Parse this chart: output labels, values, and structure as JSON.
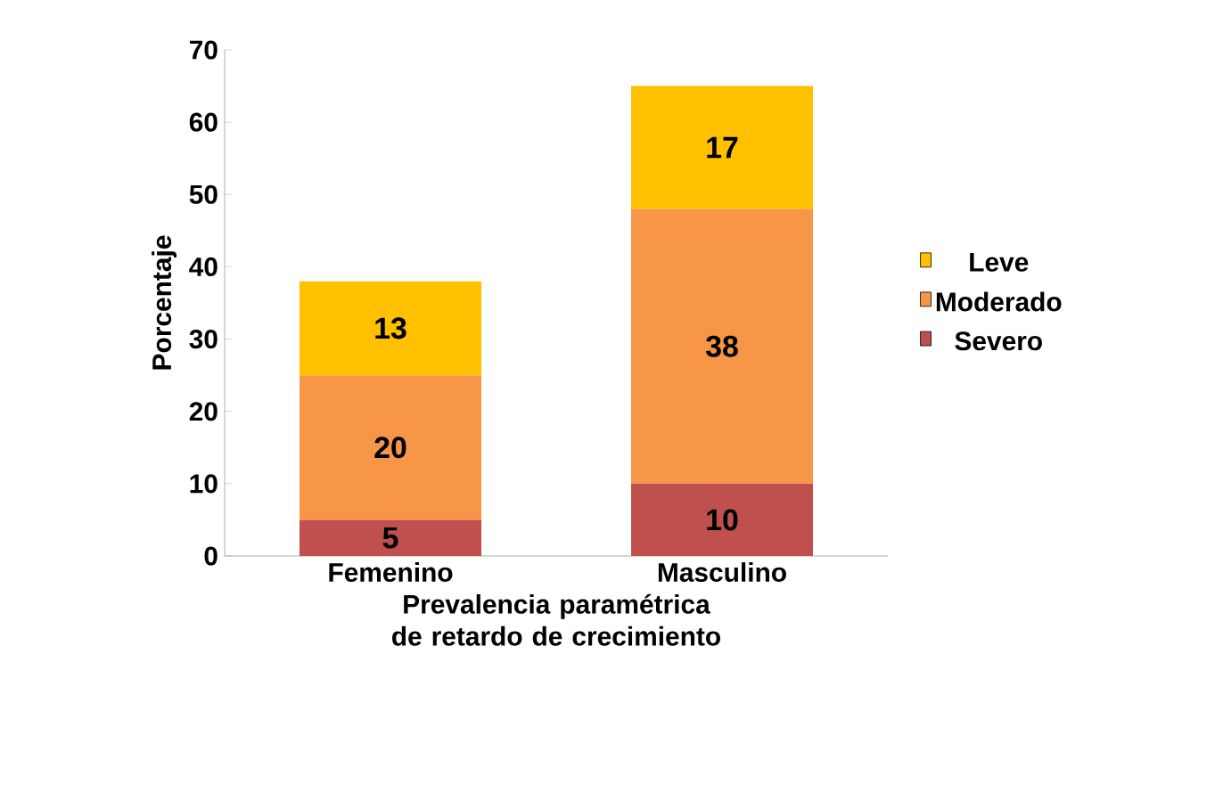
{
  "chart_data": {
    "type": "bar",
    "stacked": true,
    "xlabel": "Prevalencia paramétrica de retardo de crecimiento",
    "ylabel": "Porcentaje",
    "categories": [
      "Femenino",
      "Masculino"
    ],
    "series": [
      {
        "name": "Severo",
        "color": "#c0504d",
        "values": [
          5,
          10
        ]
      },
      {
        "name": "Moderado",
        "color": "#f79646",
        "values": [
          20,
          38
        ]
      },
      {
        "name": "Leve",
        "color": "#ffc000",
        "values": [
          13,
          17
        ]
      }
    ],
    "ylim": [
      0,
      70
    ],
    "yticks": [
      0,
      10,
      20,
      30,
      40,
      50,
      60,
      70
    ],
    "data_labels": true,
    "legend": "right",
    "grid": false
  }
}
